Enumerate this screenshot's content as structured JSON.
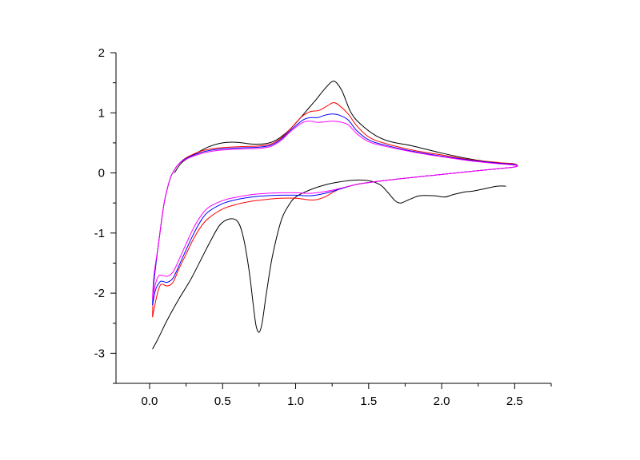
{
  "chart_data": {
    "type": "line",
    "title": "",
    "xlabel": "",
    "ylabel": "",
    "xlim": [
      -0.23,
      2.75
    ],
    "ylim": [
      -3.5,
      2.0
    ],
    "x_ticks": [
      0.0,
      0.5,
      1.0,
      1.5,
      2.0,
      2.5
    ],
    "x_tick_labels": [
      "0.0",
      "0.5",
      "1.0",
      "1.5",
      "2.0",
      "2.5"
    ],
    "y_ticks": [
      -3,
      -2,
      -1,
      0,
      1,
      2
    ],
    "y_tick_labels": [
      "-3",
      "-2",
      "-1",
      "0",
      "1",
      "2"
    ],
    "grid": false,
    "legend": "none",
    "series": [
      {
        "color": "#000000",
        "points": [
          [
            0.02,
            -2.93
          ],
          [
            0.06,
            -2.75
          ],
          [
            0.12,
            -2.45
          ],
          [
            0.2,
            -2.1
          ],
          [
            0.28,
            -1.78
          ],
          [
            0.35,
            -1.45
          ],
          [
            0.42,
            -1.12
          ],
          [
            0.48,
            -0.87
          ],
          [
            0.54,
            -0.77
          ],
          [
            0.6,
            -0.8
          ],
          [
            0.64,
            -1.05
          ],
          [
            0.68,
            -1.6
          ],
          [
            0.71,
            -2.2
          ],
          [
            0.73,
            -2.55
          ],
          [
            0.75,
            -2.65
          ],
          [
            0.77,
            -2.5
          ],
          [
            0.8,
            -2.0
          ],
          [
            0.84,
            -1.4
          ],
          [
            0.9,
            -0.8
          ],
          [
            0.95,
            -0.55
          ],
          [
            1.0,
            -0.4
          ],
          [
            1.1,
            -0.28
          ],
          [
            1.2,
            -0.2
          ],
          [
            1.3,
            -0.15
          ],
          [
            1.4,
            -0.12
          ],
          [
            1.5,
            -0.13
          ],
          [
            1.58,
            -0.2
          ],
          [
            1.63,
            -0.32
          ],
          [
            1.68,
            -0.46
          ],
          [
            1.72,
            -0.5
          ],
          [
            1.78,
            -0.44
          ],
          [
            1.85,
            -0.38
          ],
          [
            1.95,
            -0.38
          ],
          [
            2.02,
            -0.4
          ],
          [
            2.08,
            -0.36
          ],
          [
            2.15,
            -0.32
          ],
          [
            2.22,
            -0.3
          ],
          [
            2.3,
            -0.26
          ],
          [
            2.38,
            -0.22
          ],
          [
            2.44,
            -0.22
          ]
        ]
      },
      {
        "color": "#000000",
        "points": [
          [
            0.17,
            0.0
          ],
          [
            0.22,
            0.17
          ],
          [
            0.3,
            0.3
          ],
          [
            0.4,
            0.43
          ],
          [
            0.5,
            0.5
          ],
          [
            0.6,
            0.51
          ],
          [
            0.7,
            0.48
          ],
          [
            0.8,
            0.49
          ],
          [
            0.87,
            0.55
          ],
          [
            0.95,
            0.7
          ],
          [
            1.02,
            0.88
          ],
          [
            1.08,
            1.05
          ],
          [
            1.14,
            1.22
          ],
          [
            1.2,
            1.4
          ],
          [
            1.25,
            1.52
          ],
          [
            1.28,
            1.5
          ],
          [
            1.32,
            1.35
          ],
          [
            1.38,
            1.0
          ],
          [
            1.45,
            0.8
          ],
          [
            1.55,
            0.62
          ],
          [
            1.65,
            0.52
          ],
          [
            1.8,
            0.45
          ],
          [
            2.0,
            0.33
          ],
          [
            2.2,
            0.23
          ],
          [
            2.4,
            0.16
          ],
          [
            2.5,
            0.13
          ]
        ]
      },
      {
        "color": "#ff0000",
        "points": [
          [
            0.02,
            -2.4
          ],
          [
            0.04,
            -2.15
          ],
          [
            0.06,
            -1.95
          ],
          [
            0.08,
            -1.85
          ],
          [
            0.12,
            -1.88
          ],
          [
            0.16,
            -1.82
          ],
          [
            0.2,
            -1.6
          ],
          [
            0.25,
            -1.35
          ],
          [
            0.3,
            -1.1
          ],
          [
            0.35,
            -0.9
          ],
          [
            0.4,
            -0.76
          ],
          [
            0.5,
            -0.6
          ],
          [
            0.6,
            -0.52
          ],
          [
            0.7,
            -0.47
          ],
          [
            0.8,
            -0.44
          ],
          [
            0.9,
            -0.42
          ],
          [
            1.0,
            -0.42
          ],
          [
            1.1,
            -0.45
          ],
          [
            1.15,
            -0.44
          ],
          [
            1.2,
            -0.4
          ],
          [
            1.25,
            -0.33
          ],
          [
            1.3,
            -0.27
          ],
          [
            1.4,
            -0.2
          ],
          [
            1.5,
            -0.16
          ],
          [
            1.7,
            -0.1
          ],
          [
            1.9,
            -0.05
          ],
          [
            2.1,
            0.0
          ],
          [
            2.3,
            0.05
          ],
          [
            2.5,
            0.1
          ],
          [
            2.5,
            0.15
          ],
          [
            2.4,
            0.17
          ],
          [
            2.2,
            0.22
          ],
          [
            2.0,
            0.3
          ],
          [
            1.8,
            0.38
          ],
          [
            1.6,
            0.5
          ],
          [
            1.5,
            0.6
          ],
          [
            1.42,
            0.78
          ],
          [
            1.36,
            0.98
          ],
          [
            1.3,
            1.12
          ],
          [
            1.26,
            1.17
          ],
          [
            1.22,
            1.12
          ],
          [
            1.16,
            1.04
          ],
          [
            1.1,
            1.02
          ],
          [
            1.04,
            0.93
          ],
          [
            0.97,
            0.75
          ],
          [
            0.9,
            0.58
          ],
          [
            0.83,
            0.48
          ],
          [
            0.75,
            0.45
          ],
          [
            0.65,
            0.44
          ],
          [
            0.55,
            0.43
          ],
          [
            0.45,
            0.41
          ],
          [
            0.35,
            0.36
          ],
          [
            0.25,
            0.25
          ],
          [
            0.2,
            0.15
          ],
          [
            0.17,
            0.05
          ],
          [
            0.14,
            -0.1
          ],
          [
            0.1,
            -0.5
          ],
          [
            0.06,
            -1.2
          ],
          [
            0.03,
            -1.8
          ],
          [
            0.02,
            -2.4
          ]
        ]
      },
      {
        "color": "#0000ff",
        "points": [
          [
            0.02,
            -2.2
          ],
          [
            0.04,
            -1.95
          ],
          [
            0.06,
            -1.85
          ],
          [
            0.08,
            -1.8
          ],
          [
            0.12,
            -1.82
          ],
          [
            0.16,
            -1.75
          ],
          [
            0.2,
            -1.55
          ],
          [
            0.25,
            -1.28
          ],
          [
            0.3,
            -1.02
          ],
          [
            0.35,
            -0.8
          ],
          [
            0.4,
            -0.65
          ],
          [
            0.5,
            -0.51
          ],
          [
            0.6,
            -0.44
          ],
          [
            0.7,
            -0.4
          ],
          [
            0.8,
            -0.38
          ],
          [
            0.9,
            -0.37
          ],
          [
            1.0,
            -0.37
          ],
          [
            1.1,
            -0.38
          ],
          [
            1.2,
            -0.34
          ],
          [
            1.3,
            -0.27
          ],
          [
            1.4,
            -0.2
          ],
          [
            1.5,
            -0.16
          ],
          [
            1.7,
            -0.1
          ],
          [
            1.9,
            -0.05
          ],
          [
            2.1,
            0.0
          ],
          [
            2.3,
            0.05
          ],
          [
            2.5,
            0.1
          ],
          [
            2.5,
            0.14
          ],
          [
            2.4,
            0.16
          ],
          [
            2.2,
            0.21
          ],
          [
            2.0,
            0.28
          ],
          [
            1.8,
            0.36
          ],
          [
            1.6,
            0.47
          ],
          [
            1.5,
            0.55
          ],
          [
            1.42,
            0.7
          ],
          [
            1.36,
            0.88
          ],
          [
            1.3,
            0.96
          ],
          [
            1.25,
            0.98
          ],
          [
            1.2,
            0.96
          ],
          [
            1.15,
            0.92
          ],
          [
            1.1,
            0.92
          ],
          [
            1.05,
            0.88
          ],
          [
            0.97,
            0.72
          ],
          [
            0.9,
            0.56
          ],
          [
            0.83,
            0.46
          ],
          [
            0.75,
            0.43
          ],
          [
            0.65,
            0.42
          ],
          [
            0.55,
            0.41
          ],
          [
            0.45,
            0.39
          ],
          [
            0.35,
            0.34
          ],
          [
            0.25,
            0.24
          ],
          [
            0.2,
            0.15
          ],
          [
            0.17,
            0.05
          ],
          [
            0.14,
            -0.1
          ],
          [
            0.1,
            -0.5
          ],
          [
            0.06,
            -1.2
          ],
          [
            0.03,
            -1.8
          ],
          [
            0.02,
            -2.2
          ]
        ]
      },
      {
        "color": "#ff00ff",
        "points": [
          [
            0.02,
            -2.1
          ],
          [
            0.04,
            -1.85
          ],
          [
            0.06,
            -1.72
          ],
          [
            0.08,
            -1.7
          ],
          [
            0.12,
            -1.72
          ],
          [
            0.16,
            -1.65
          ],
          [
            0.2,
            -1.45
          ],
          [
            0.25,
            -1.18
          ],
          [
            0.3,
            -0.92
          ],
          [
            0.35,
            -0.72
          ],
          [
            0.4,
            -0.58
          ],
          [
            0.5,
            -0.46
          ],
          [
            0.6,
            -0.4
          ],
          [
            0.7,
            -0.36
          ],
          [
            0.8,
            -0.34
          ],
          [
            0.9,
            -0.33
          ],
          [
            1.0,
            -0.33
          ],
          [
            1.1,
            -0.34
          ],
          [
            1.2,
            -0.31
          ],
          [
            1.3,
            -0.26
          ],
          [
            1.4,
            -0.2
          ],
          [
            1.5,
            -0.16
          ],
          [
            1.7,
            -0.1
          ],
          [
            1.9,
            -0.05
          ],
          [
            2.1,
            0.0
          ],
          [
            2.3,
            0.05
          ],
          [
            2.5,
            0.1
          ],
          [
            2.5,
            0.13
          ],
          [
            2.4,
            0.15
          ],
          [
            2.2,
            0.2
          ],
          [
            2.0,
            0.27
          ],
          [
            1.8,
            0.35
          ],
          [
            1.6,
            0.45
          ],
          [
            1.5,
            0.52
          ],
          [
            1.42,
            0.65
          ],
          [
            1.36,
            0.8
          ],
          [
            1.3,
            0.85
          ],
          [
            1.25,
            0.86
          ],
          [
            1.2,
            0.85
          ],
          [
            1.15,
            0.84
          ],
          [
            1.1,
            0.86
          ],
          [
            1.05,
            0.84
          ],
          [
            0.97,
            0.7
          ],
          [
            0.9,
            0.54
          ],
          [
            0.83,
            0.44
          ],
          [
            0.75,
            0.41
          ],
          [
            0.65,
            0.4
          ],
          [
            0.55,
            0.39
          ],
          [
            0.45,
            0.37
          ],
          [
            0.35,
            0.32
          ],
          [
            0.25,
            0.23
          ],
          [
            0.2,
            0.15
          ],
          [
            0.17,
            0.05
          ],
          [
            0.14,
            -0.1
          ],
          [
            0.1,
            -0.5
          ],
          [
            0.06,
            -1.2
          ],
          [
            0.03,
            -1.7
          ],
          [
            0.02,
            -2.1
          ]
        ]
      }
    ]
  }
}
